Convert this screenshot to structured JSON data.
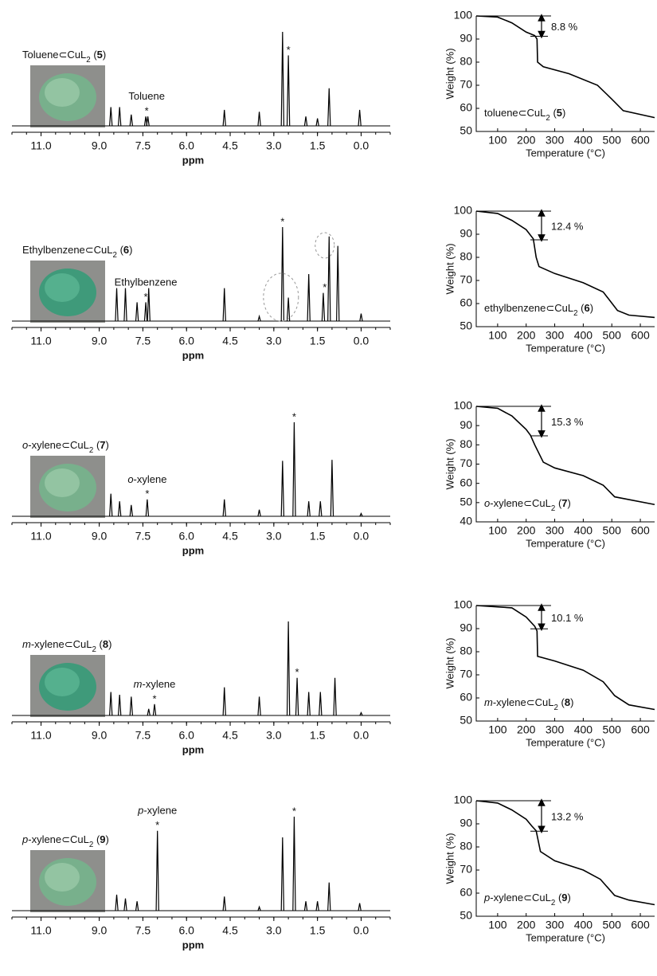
{
  "panels": [
    {
      "nmr": {
        "label": [
          {
            "text": "Toluene⊂CuL"
          },
          {
            "text": "2",
            "style": "sub"
          },
          {
            "text": " ("
          },
          {
            "text": "5",
            "style": "bold"
          },
          {
            "text": ")"
          }
        ],
        "solvent": [
          {
            "text": "Toluene"
          }
        ],
        "peaks": {
          "ppm": [
            8.6,
            8.3,
            7.9,
            7.4,
            7.33,
            4.7,
            3.5,
            2.7,
            2.5,
            1.9,
            1.5,
            1.1,
            0.05
          ],
          "height": [
            0.2,
            0.2,
            0.12,
            0.1,
            0.1,
            0.17,
            0.15,
            1.0,
            0.75,
            0.1,
            0.08,
            0.4,
            0.17
          ]
        },
        "stars": [
          {
            "ppm": 7.37,
            "text": "*"
          },
          {
            "ppm": 2.5,
            "text": "*"
          }
        ],
        "xlim": [
          12,
          -1
        ],
        "xticks": [
          {
            "value": 11,
            "label": "11.0"
          },
          {
            "value": 9,
            "label": "9.0"
          },
          7.5,
          {
            "value": 6,
            "label": "6.0"
          },
          4.5,
          {
            "value": 3,
            "label": "3.0"
          },
          1.5,
          {
            "value": 0,
            "label": "0.0"
          }
        ],
        "xlabel": "ppm"
      },
      "tga": {
        "label": [
          {
            "text": "toluene⊂CuL"
          },
          {
            "text": "2",
            "style": "sub"
          },
          {
            "text": " ("
          },
          {
            "text": "5",
            "style": "bold"
          },
          {
            "text": ")"
          }
        ],
        "loss": {
          "value": 8.8,
          "label": "8.8 %"
        },
        "x": [
          25,
          100,
          150,
          200,
          230,
          238,
          240,
          260,
          350,
          450,
          500,
          540,
          650
        ],
        "y": [
          100,
          99.5,
          97,
          93,
          91.5,
          90,
          80,
          78,
          75,
          70,
          64,
          59,
          56
        ],
        "xlim": [
          25,
          650
        ],
        "ylim": [
          50,
          100
        ],
        "xticks": [
          100,
          200,
          300,
          400,
          500,
          600
        ],
        "yticks": [
          50,
          60,
          70,
          80,
          90,
          100
        ],
        "xlabel": "Temperature (°C)",
        "ylabel": "Weight (%)"
      }
    },
    {
      "nmr": {
        "label": [
          {
            "text": "Ethylbenzene⊂CuL"
          },
          {
            "text": "2",
            "style": "sub"
          },
          {
            "text": " ("
          },
          {
            "text": "6",
            "style": "bold"
          },
          {
            "text": ")"
          }
        ],
        "solvent": [
          {
            "text": "Ethylbenzene"
          }
        ],
        "peaks": {
          "ppm": [
            8.4,
            8.1,
            7.7,
            7.4,
            7.3,
            4.7,
            3.5,
            2.7,
            2.5,
            1.8,
            1.3,
            1.1,
            0.8,
            0.0
          ],
          "height": [
            0.35,
            0.35,
            0.2,
            0.2,
            0.35,
            0.35,
            0.05,
            1.0,
            0.25,
            0.5,
            0.3,
            0.9,
            0.8,
            0.08
          ]
        },
        "stars": [
          {
            "ppm": 7.4,
            "text": "*"
          },
          {
            "ppm": 2.7,
            "text": "*"
          },
          {
            "ppm": 1.25,
            "text": "*"
          }
        ],
        "xlim": [
          12,
          -1
        ],
        "xticks": [
          {
            "value": 11,
            "label": "11.0"
          },
          {
            "value": 9,
            "label": "9.0"
          },
          7.5,
          {
            "value": 6,
            "label": "6.0"
          },
          4.5,
          {
            "value": 3,
            "label": "3.0"
          },
          1.5,
          {
            "value": 0,
            "label": "0.0"
          }
        ],
        "xlabel": "ppm"
      },
      "tga": {
        "label": [
          {
            "text": "ethylbenzene⊂CuL"
          },
          {
            "text": "2",
            "style": "sub"
          },
          {
            "text": " ("
          },
          {
            "text": "6",
            "style": "bold"
          },
          {
            "text": ")"
          }
        ],
        "loss": {
          "value": 12.4,
          "label": "12.4 %"
        },
        "x": [
          25,
          100,
          150,
          200,
          225,
          235,
          245,
          300,
          400,
          470,
          520,
          560,
          650
        ],
        "y": [
          100,
          99,
          96,
          92,
          88,
          80,
          76,
          73,
          69,
          65,
          57,
          55,
          54
        ],
        "xlim": [
          25,
          650
        ],
        "ylim": [
          50,
          100
        ],
        "xticks": [
          100,
          200,
          300,
          400,
          500,
          600
        ],
        "yticks": [
          50,
          60,
          70,
          80,
          90,
          100
        ],
        "xlabel": "Temperature (°C)",
        "ylabel": "Weight (%)"
      }
    },
    {
      "nmr": {
        "label": [
          {
            "text": "o",
            "style": "italic"
          },
          {
            "text": "-xylene⊂CuL"
          },
          {
            "text": "2",
            "style": "sub"
          },
          {
            "text": " ("
          },
          {
            "text": "7",
            "style": "bold"
          },
          {
            "text": ")"
          }
        ],
        "solvent": [
          {
            "text": "o",
            "style": "italic"
          },
          {
            "text": "-xylene"
          }
        ],
        "peaks": {
          "ppm": [
            8.6,
            8.3,
            7.9,
            7.35,
            4.7,
            3.5,
            2.7,
            2.3,
            1.8,
            1.4,
            1.0,
            0.0
          ],
          "height": [
            0.24,
            0.16,
            0.12,
            0.18,
            0.18,
            0.07,
            0.59,
            1.0,
            0.16,
            0.16,
            0.6,
            0.03
          ]
        },
        "stars": [
          {
            "ppm": 7.35,
            "text": "*"
          },
          {
            "ppm": 2.3,
            "text": "*"
          }
        ],
        "xlim": [
          12,
          -1
        ],
        "xticks": [
          {
            "value": 11,
            "label": "11.0"
          },
          {
            "value": 9,
            "label": "9.0"
          },
          7.5,
          {
            "value": 6,
            "label": "6.0"
          },
          4.5,
          {
            "value": 3,
            "label": "3.0"
          },
          1.5,
          {
            "value": 0,
            "label": "0.0"
          }
        ],
        "xlabel": "ppm"
      },
      "tga": {
        "label": [
          {
            "text": "o",
            "style": "italic"
          },
          {
            "text": "-xylene⊂CuL"
          },
          {
            "text": "2",
            "style": "sub"
          },
          {
            "text": " ("
          },
          {
            "text": "7",
            "style": "bold"
          },
          {
            "text": ")"
          }
        ],
        "loss": {
          "value": 15.3,
          "label": "15.3 %"
        },
        "x": [
          25,
          100,
          150,
          200,
          215,
          230,
          260,
          300,
          400,
          470,
          510,
          650
        ],
        "y": [
          100,
          99,
          95,
          88,
          85,
          80,
          71,
          68,
          64,
          59,
          53,
          49
        ],
        "xlim": [
          25,
          650
        ],
        "ylim": [
          40,
          100
        ],
        "xticks": [
          100,
          200,
          300,
          400,
          500,
          600
        ],
        "yticks": [
          40,
          50,
          60,
          70,
          80,
          90,
          100
        ],
        "xlabel": "Temperature (°C)",
        "ylabel": "Weight (%)"
      }
    },
    {
      "nmr": {
        "label": [
          {
            "text": "m",
            "style": "italic"
          },
          {
            "text": "-xylene⊂CuL"
          },
          {
            "text": "2",
            "style": "sub"
          },
          {
            "text": " ("
          },
          {
            "text": "8",
            "style": "bold"
          },
          {
            "text": ")"
          }
        ],
        "solvent": [
          {
            "text": "m",
            "style": "italic"
          },
          {
            "text": "-xylene"
          }
        ],
        "peaks": {
          "ppm": [
            8.6,
            8.3,
            7.9,
            7.3,
            7.1,
            4.7,
            3.5,
            2.5,
            2.2,
            1.8,
            1.4,
            0.9,
            0.0
          ],
          "height": [
            0.25,
            0.22,
            0.2,
            0.07,
            0.12,
            0.3,
            0.2,
            1.0,
            0.4,
            0.25,
            0.25,
            0.4,
            0.03
          ]
        },
        "stars": [
          {
            "ppm": 7.1,
            "text": "*"
          },
          {
            "ppm": 2.2,
            "text": "*"
          }
        ],
        "xlim": [
          12,
          -1
        ],
        "xticks": [
          {
            "value": 11,
            "label": "11.0"
          },
          {
            "value": 9,
            "label": "9.0"
          },
          7.5,
          {
            "value": 6,
            "label": "6.0"
          },
          4.5,
          {
            "value": 3,
            "label": "3.0"
          },
          1.5,
          {
            "value": 0,
            "label": "0.0"
          }
        ],
        "xlabel": "ppm"
      },
      "tga": {
        "label": [
          {
            "text": "m",
            "style": "italic"
          },
          {
            "text": "-xylene⊂CuL"
          },
          {
            "text": "2",
            "style": "sub"
          },
          {
            "text": " ("
          },
          {
            "text": "8",
            "style": "bold"
          },
          {
            "text": ")"
          }
        ],
        "loss": {
          "value": 10.1,
          "label": "10.1 %"
        },
        "x": [
          25,
          150,
          200,
          230,
          238,
          240,
          300,
          400,
          470,
          510,
          560,
          650
        ],
        "y": [
          100,
          99,
          95,
          91,
          89,
          78,
          76,
          72,
          67,
          61,
          57,
          55
        ],
        "xlim": [
          25,
          650
        ],
        "ylim": [
          50,
          100
        ],
        "xticks": [
          100,
          200,
          300,
          400,
          500,
          600
        ],
        "yticks": [
          50,
          60,
          70,
          80,
          90,
          100
        ],
        "xlabel": "Temperature (°C)",
        "ylabel": "Weight (%)"
      }
    },
    {
      "nmr": {
        "label": [
          {
            "text": "p",
            "style": "italic"
          },
          {
            "text": "-xylene⊂CuL"
          },
          {
            "text": "2",
            "style": "sub"
          },
          {
            "text": " ("
          },
          {
            "text": "9",
            "style": "bold"
          },
          {
            "text": ")"
          }
        ],
        "solvent": [
          {
            "text": "p",
            "style": "italic"
          },
          {
            "text": "-xylene"
          }
        ],
        "peaks": {
          "ppm": [
            8.4,
            8.1,
            7.7,
            7.0,
            4.7,
            3.5,
            2.7,
            2.3,
            1.9,
            1.5,
            1.1,
            0.05
          ],
          "height": [
            0.17,
            0.13,
            0.1,
            0.85,
            0.15,
            0.04,
            0.78,
            1.0,
            0.1,
            0.1,
            0.3,
            0.08
          ]
        },
        "stars": [
          {
            "ppm": 7.0,
            "text": "*"
          },
          {
            "ppm": 2.3,
            "text": "*"
          }
        ],
        "xlim": [
          12,
          -1
        ],
        "xticks": [
          {
            "value": 11,
            "label": "11.0"
          },
          {
            "value": 9,
            "label": "9.0"
          },
          7.5,
          {
            "value": 6,
            "label": "6.0"
          },
          4.5,
          {
            "value": 3,
            "label": "3.0"
          },
          1.5,
          {
            "value": 0,
            "label": "0.0"
          }
        ],
        "xlabel": "ppm"
      },
      "tga": {
        "label": [
          {
            "text": "p",
            "style": "italic"
          },
          {
            "text": "-xylene⊂CuL"
          },
          {
            "text": "2",
            "style": "sub"
          },
          {
            "text": " ("
          },
          {
            "text": "9",
            "style": "bold"
          },
          {
            "text": ")"
          }
        ],
        "loss": {
          "value": 13.2,
          "label": "13.2 %"
        },
        "x": [
          25,
          100,
          150,
          200,
          220,
          235,
          250,
          300,
          400,
          460,
          510,
          560,
          650
        ],
        "y": [
          100,
          99,
          96,
          92,
          89,
          87,
          78,
          74,
          70,
          66,
          59,
          57,
          55
        ],
        "xlim": [
          25,
          650
        ],
        "ylim": [
          50,
          100
        ],
        "xticks": [
          100,
          200,
          300,
          400,
          500,
          600
        ],
        "yticks": [
          50,
          60,
          70,
          80,
          90,
          100
        ],
        "xlabel": "Temperature (°C)",
        "ylabel": "Weight (%)"
      }
    }
  ]
}
